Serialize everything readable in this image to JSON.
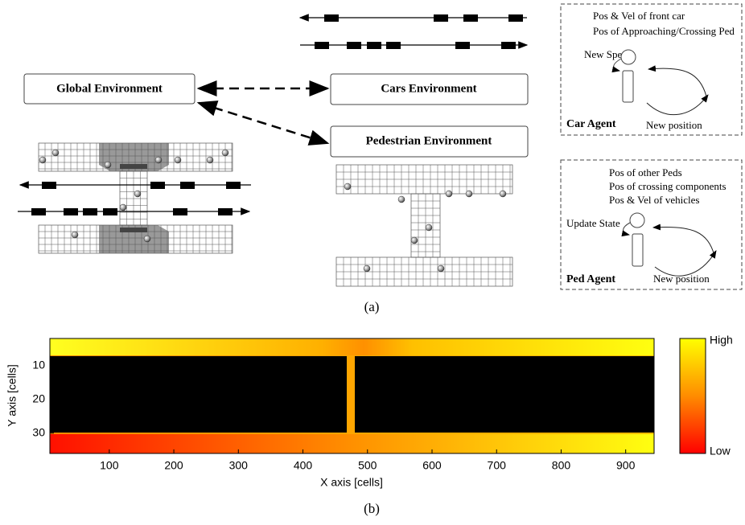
{
  "diagram": {
    "caption": "(a)",
    "boxes": [
      "Global Environment",
      "Cars Environment",
      "Pedestrian Environment"
    ],
    "car_agent": {
      "title": "Car Agent",
      "inputs": [
        "Pos & Vel of front car",
        "Pos of Approaching/Crossing Ped"
      ],
      "update": "New Speed",
      "output": "New position"
    },
    "ped_agent": {
      "title": "Ped Agent",
      "inputs": [
        "Pos of other Peds",
        "Pos of crossing components",
        "Pos & Vel of vehicles"
      ],
      "update": "Update State",
      "output": "New position"
    }
  },
  "chart_data": {
    "type": "heatmap",
    "caption": "(b)",
    "xlabel": "X axis [cells]",
    "ylabel": "Y axis [cells]",
    "xlim": [
      8,
      944
    ],
    "ylim": [
      36,
      2
    ],
    "xticks": [
      100,
      200,
      300,
      400,
      500,
      600,
      700,
      800,
      900
    ],
    "yticks": [
      10,
      20,
      30
    ],
    "colorbar": {
      "high": "High",
      "low": "Low",
      "colors": [
        "#ff0000",
        "#ff8c00",
        "#ffff00"
      ]
    }
  }
}
